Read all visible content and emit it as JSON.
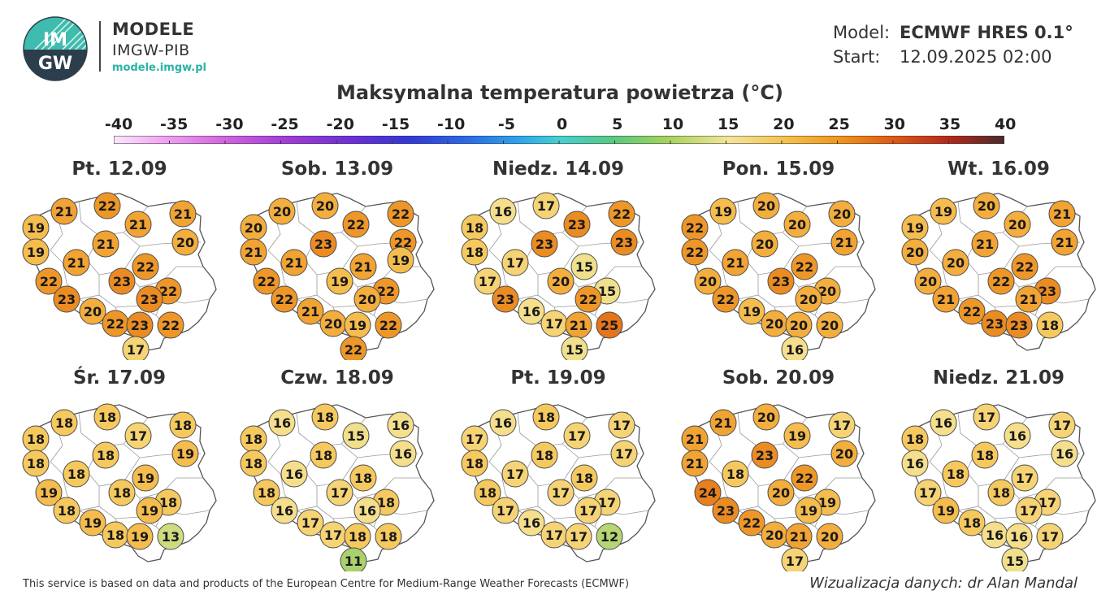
{
  "header": {
    "logo_text_top": "IM",
    "logo_text_bottom": "GW",
    "brand_title": "MODELE",
    "brand_subtitle": "IMGW-PIB",
    "brand_url": "modele.imgw.pl",
    "model_label": "Model:",
    "model_value": "ECMWF HRES 0.1°",
    "start_label": "Start:",
    "start_value": "12.09.2025 02:00"
  },
  "title": "Maksymalna temperatura powietrza (°C)",
  "scale": {
    "ticks": [
      "-40",
      "-35",
      "-30",
      "-25",
      "-20",
      "-15",
      "-10",
      "-5",
      "0",
      "5",
      "10",
      "15",
      "20",
      "25",
      "30",
      "35",
      "40"
    ],
    "min": -40,
    "max": 40
  },
  "days": [
    {
      "label": "Pt. 12.09",
      "values": [
        19,
        21,
        22,
        21,
        21,
        19,
        21,
        21,
        22,
        20,
        22,
        23,
        22,
        23,
        23,
        20,
        22,
        23,
        22,
        17
      ]
    },
    {
      "label": "Sob. 13.09",
      "values": [
        20,
        20,
        20,
        22,
        22,
        21,
        21,
        23,
        21,
        22,
        22,
        19,
        22,
        20,
        22,
        21,
        20,
        19,
        22,
        22,
        19
      ]
    },
    {
      "label": "Niedz. 14.09",
      "values": [
        18,
        16,
        17,
        23,
        22,
        18,
        17,
        23,
        15,
        23,
        17,
        20,
        15,
        22,
        23,
        16,
        17,
        21,
        25,
        15
      ]
    },
    {
      "label": "Pon. 15.09",
      "values": [
        22,
        19,
        20,
        20,
        20,
        22,
        21,
        20,
        22,
        21,
        20,
        23,
        20,
        20,
        22,
        19,
        20,
        20,
        20,
        16
      ]
    },
    {
      "label": "Wt. 16.09",
      "values": [
        19,
        19,
        20,
        20,
        21,
        20,
        20,
        21,
        22,
        21,
        20,
        22,
        23,
        21,
        21,
        22,
        23,
        23,
        18
      ]
    },
    {
      "label": "Śr. 17.09",
      "values": [
        18,
        18,
        18,
        17,
        18,
        18,
        18,
        18,
        19,
        19,
        19,
        18,
        18,
        19,
        18,
        19,
        18,
        19,
        13
      ]
    },
    {
      "label": "Czw. 18.09",
      "values": [
        18,
        16,
        18,
        15,
        16,
        18,
        16,
        18,
        18,
        16,
        18,
        17,
        18,
        16,
        16,
        17,
        17,
        18,
        18,
        11
      ]
    },
    {
      "label": "Pt. 19.09",
      "values": [
        17,
        16,
        18,
        17,
        17,
        18,
        17,
        18,
        18,
        17,
        18,
        17,
        17,
        17,
        17,
        16,
        17,
        17,
        12
      ]
    },
    {
      "label": "Sob. 20.09",
      "values": [
        21,
        21,
        20,
        19,
        17,
        21,
        18,
        23,
        22,
        20,
        24,
        20,
        19,
        19,
        23,
        22,
        20,
        21,
        20,
        17
      ]
    },
    {
      "label": "Niedz. 21.09",
      "values": [
        18,
        16,
        17,
        16,
        17,
        16,
        18,
        18,
        17,
        16,
        17,
        18,
        17,
        17,
        19,
        18,
        16,
        16,
        17,
        15
      ]
    }
  ],
  "footer": {
    "attribution": "This service is based on data and products of the European Centre for Medium-Range Weather Forecasts (ECMWF)",
    "credit": "Wizualizacja danych: dr Alan Mandal"
  }
}
